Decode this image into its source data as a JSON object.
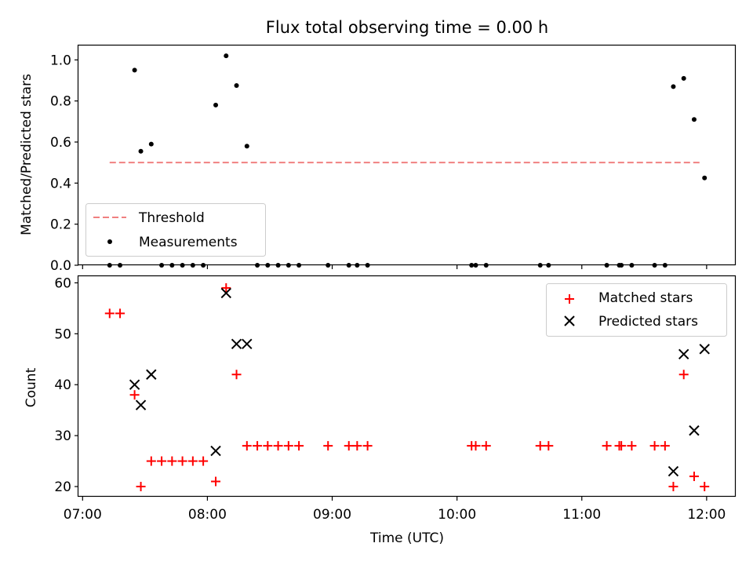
{
  "chart_data": [
    {
      "type": "scatter",
      "title": "Flux total observing time = 0.00 h",
      "xlabel": "",
      "ylabel": "Matched/Predicted stars",
      "ylim": [
        0,
        1.07
      ],
      "yticks": [
        "0.0",
        "0.2",
        "0.4",
        "0.6",
        "0.8",
        "1.0"
      ],
      "ytick_values": [
        0,
        0.2,
        0.4,
        0.6,
        0.8,
        1.0
      ],
      "xlim": [
        "06:58",
        "12:14"
      ],
      "xtick_values": [
        "07:00",
        "08:00",
        "09:00",
        "10:00",
        "11:00",
        "12:00"
      ],
      "legend": "lower-left",
      "threshold": {
        "name": "Threshold",
        "value": 0.5,
        "x_start": "07:13",
        "x_end": "11:57",
        "color": "#f08080"
      },
      "series": [
        {
          "name": "Measurements",
          "color": "#000000",
          "points": [
            {
              "x": "07:13",
              "y": 0
            },
            {
              "x": "07:18",
              "y": 0
            },
            {
              "x": "07:25",
              "y": 0.95
            },
            {
              "x": "07:28",
              "y": 0.555
            },
            {
              "x": "07:33",
              "y": 0.59
            },
            {
              "x": "07:38",
              "y": 0
            },
            {
              "x": "07:43",
              "y": 0
            },
            {
              "x": "07:48",
              "y": 0
            },
            {
              "x": "07:53",
              "y": 0
            },
            {
              "x": "07:58",
              "y": 0
            },
            {
              "x": "08:04",
              "y": 0.78
            },
            {
              "x": "08:09",
              "y": 1.02
            },
            {
              "x": "08:14",
              "y": 0.875
            },
            {
              "x": "08:19",
              "y": 0.58
            },
            {
              "x": "08:24",
              "y": 0
            },
            {
              "x": "08:29",
              "y": 0
            },
            {
              "x": "08:34",
              "y": 0
            },
            {
              "x": "08:39",
              "y": 0
            },
            {
              "x": "08:44",
              "y": 0
            },
            {
              "x": "08:58",
              "y": 0
            },
            {
              "x": "09:08",
              "y": 0
            },
            {
              "x": "09:12",
              "y": 0
            },
            {
              "x": "09:17",
              "y": 0
            },
            {
              "x": "10:07",
              "y": 0
            },
            {
              "x": "10:09",
              "y": 0
            },
            {
              "x": "10:14",
              "y": 0
            },
            {
              "x": "10:40",
              "y": 0
            },
            {
              "x": "10:44",
              "y": 0
            },
            {
              "x": "11:12",
              "y": 0
            },
            {
              "x": "11:18",
              "y": 0
            },
            {
              "x": "11:19",
              "y": 0
            },
            {
              "x": "11:24",
              "y": 0
            },
            {
              "x": "11:35",
              "y": 0
            },
            {
              "x": "11:40",
              "y": 0
            },
            {
              "x": "11:44",
              "y": 0.87
            },
            {
              "x": "11:49",
              "y": 0.91
            },
            {
              "x": "11:54",
              "y": 0.71
            },
            {
              "x": "11:59",
              "y": 0.425
            }
          ]
        }
      ]
    },
    {
      "type": "scatter",
      "title": "",
      "xlabel": "Time (UTC)",
      "ylabel": "Count",
      "ylim": [
        18,
        61.3
      ],
      "yticks": [
        "20",
        "30",
        "40",
        "50",
        "60"
      ],
      "ytick_values": [
        20,
        30,
        40,
        50,
        60
      ],
      "xlim": [
        "06:58",
        "12:14"
      ],
      "xticks": [
        "07:00",
        "08:00",
        "09:00",
        "10:00",
        "11:00",
        "12:00"
      ],
      "xtick_values": [
        "07:00",
        "08:00",
        "09:00",
        "10:00",
        "11:00",
        "12:00"
      ],
      "legend": "top-right",
      "series": [
        {
          "name": "Matched stars",
          "color": "#ff0000",
          "marker": "plus",
          "points": [
            {
              "x": "07:13",
              "y": 54
            },
            {
              "x": "07:18",
              "y": 54
            },
            {
              "x": "07:25",
              "y": 38
            },
            {
              "x": "07:28",
              "y": 20
            },
            {
              "x": "07:33",
              "y": 25
            },
            {
              "x": "07:38",
              "y": 25
            },
            {
              "x": "07:43",
              "y": 25
            },
            {
              "x": "07:48",
              "y": 25
            },
            {
              "x": "07:53",
              "y": 25
            },
            {
              "x": "07:58",
              "y": 25
            },
            {
              "x": "08:04",
              "y": 21
            },
            {
              "x": "08:09",
              "y": 59
            },
            {
              "x": "08:14",
              "y": 42
            },
            {
              "x": "08:19",
              "y": 28
            },
            {
              "x": "08:24",
              "y": 28
            },
            {
              "x": "08:29",
              "y": 28
            },
            {
              "x": "08:34",
              "y": 28
            },
            {
              "x": "08:39",
              "y": 28
            },
            {
              "x": "08:44",
              "y": 28
            },
            {
              "x": "08:58",
              "y": 28
            },
            {
              "x": "09:08",
              "y": 28
            },
            {
              "x": "09:12",
              "y": 28
            },
            {
              "x": "09:17",
              "y": 28
            },
            {
              "x": "10:07",
              "y": 28
            },
            {
              "x": "10:09",
              "y": 28
            },
            {
              "x": "10:14",
              "y": 28
            },
            {
              "x": "10:40",
              "y": 28
            },
            {
              "x": "10:44",
              "y": 28
            },
            {
              "x": "11:12",
              "y": 28
            },
            {
              "x": "11:18",
              "y": 28
            },
            {
              "x": "11:19",
              "y": 28
            },
            {
              "x": "11:24",
              "y": 28
            },
            {
              "x": "11:35",
              "y": 28
            },
            {
              "x": "11:40",
              "y": 28
            },
            {
              "x": "11:44",
              "y": 20
            },
            {
              "x": "11:49",
              "y": 42
            },
            {
              "x": "11:54",
              "y": 22
            },
            {
              "x": "11:59",
              "y": 20
            }
          ]
        },
        {
          "name": "Predicted stars",
          "color": "#000000",
          "marker": "x",
          "points": [
            {
              "x": "07:25",
              "y": 40
            },
            {
              "x": "07:28",
              "y": 36
            },
            {
              "x": "07:33",
              "y": 42
            },
            {
              "x": "08:04",
              "y": 27
            },
            {
              "x": "08:09",
              "y": 58
            },
            {
              "x": "08:14",
              "y": 48
            },
            {
              "x": "08:19",
              "y": 48
            },
            {
              "x": "11:44",
              "y": 23
            },
            {
              "x": "11:49",
              "y": 46
            },
            {
              "x": "11:54",
              "y": 31
            },
            {
              "x": "11:59",
              "y": 47
            }
          ]
        }
      ]
    }
  ]
}
